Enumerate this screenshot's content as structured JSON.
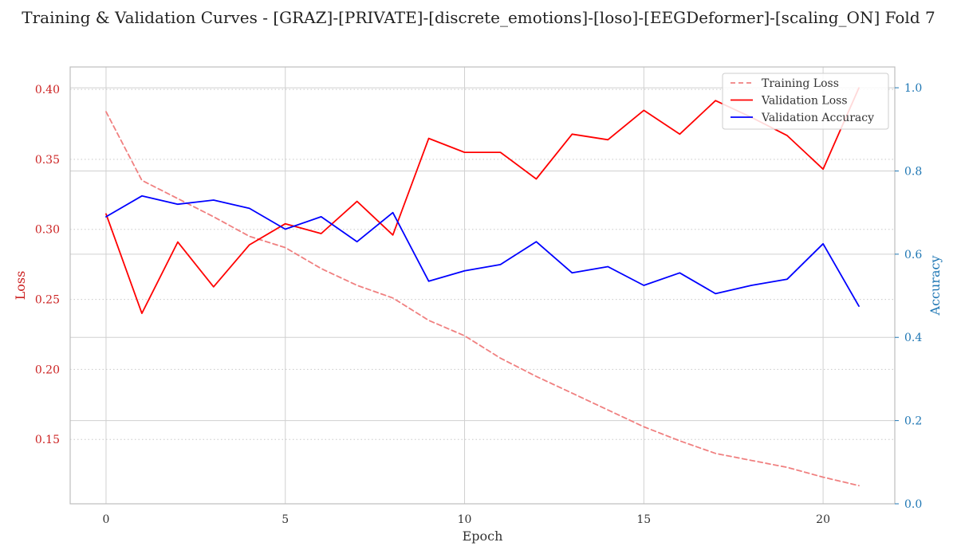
{
  "chart_data": {
    "type": "line",
    "title": "Training & Validation Curves - [GRAZ]-[PRIVATE]-[discrete_emotions]-[loso]-[EEGDeformer]-[scaling_ON] Fold 7",
    "xlabel": "Epoch",
    "ylabel_left": "Loss",
    "ylabel_right": "Accuracy",
    "xlim": [
      -1,
      22
    ],
    "ylim_left": [
      0.104,
      0.416
    ],
    "ylim_right": [
      0.0,
      1.05
    ],
    "x_ticks": [
      0,
      5,
      10,
      15,
      20
    ],
    "y_ticks_left": [
      0.15,
      0.2,
      0.25,
      0.3,
      0.35,
      0.4
    ],
    "y_ticks_right": [
      0.0,
      0.2,
      0.4,
      0.6,
      0.8,
      1.0
    ],
    "grid": true,
    "legend_position": "top-right",
    "left_axis_color": "#cc2222",
    "right_axis_color": "#1f77b4",
    "x": [
      0,
      1,
      2,
      3,
      4,
      5,
      6,
      7,
      8,
      9,
      10,
      11,
      12,
      13,
      14,
      15,
      16,
      17,
      18,
      19,
      20,
      21
    ],
    "series": [
      {
        "name": "Training Loss",
        "axis": "left",
        "color": "#f08080",
        "style": "dashed",
        "values": [
          0.384,
          0.335,
          0.322,
          0.309,
          0.295,
          0.287,
          0.272,
          0.26,
          0.251,
          0.235,
          0.224,
          0.208,
          0.195,
          0.183,
          0.171,
          0.159,
          0.149,
          0.14,
          0.135,
          0.13,
          0.123,
          0.117
        ]
      },
      {
        "name": "Validation Loss",
        "axis": "left",
        "color": "#ff0000",
        "style": "solid",
        "values": [
          0.311,
          0.24,
          0.291,
          0.259,
          0.289,
          0.304,
          0.297,
          0.32,
          0.296,
          0.365,
          0.355,
          0.355,
          0.336,
          0.368,
          0.364,
          0.385,
          0.368,
          0.392,
          0.38,
          0.367,
          0.343,
          0.401
        ]
      },
      {
        "name": "Validation Accuracy",
        "axis": "right",
        "color": "#0000ff",
        "style": "solid",
        "values": [
          0.69,
          0.74,
          0.72,
          0.73,
          0.71,
          0.66,
          0.69,
          0.63,
          0.7,
          0.535,
          0.56,
          0.575,
          0.63,
          0.555,
          0.57,
          0.525,
          0.555,
          0.505,
          0.525,
          0.54,
          0.625,
          0.475
        ]
      }
    ]
  }
}
